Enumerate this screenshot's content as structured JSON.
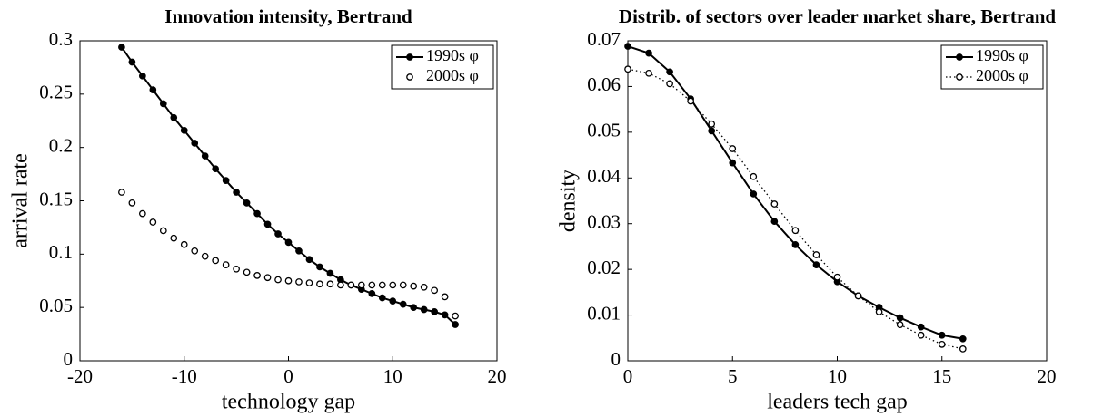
{
  "chart_data": [
    {
      "type": "line",
      "title": "Innovation intensity, Bertrand",
      "xlabel": "technology gap",
      "ylabel": "arrival rate",
      "x": [
        -16,
        -15,
        -14,
        -13,
        -12,
        -11,
        -10,
        -9,
        -8,
        -7,
        -6,
        -5,
        -4,
        -3,
        -2,
        -1,
        0,
        1,
        2,
        3,
        4,
        5,
        6,
        7,
        8,
        9,
        10,
        11,
        12,
        13,
        14,
        15,
        16
      ],
      "series": [
        {
          "name": "1990s φ",
          "color": "#000000",
          "linestyle": "solid",
          "marker_filled": true,
          "values": [
            0.294,
            0.28,
            0.267,
            0.254,
            0.241,
            0.228,
            0.216,
            0.204,
            0.192,
            0.18,
            0.169,
            0.158,
            0.148,
            0.138,
            0.128,
            0.119,
            0.111,
            0.103,
            0.095,
            0.088,
            0.082,
            0.076,
            0.071,
            0.067,
            0.063,
            0.059,
            0.056,
            0.053,
            0.05,
            0.048,
            0.046,
            0.043,
            0.034
          ]
        },
        {
          "name": "2000s φ",
          "color": "#000000",
          "linestyle": "none",
          "marker_filled": false,
          "values": [
            0.158,
            0.148,
            0.138,
            0.13,
            0.122,
            0.115,
            0.109,
            0.103,
            0.098,
            0.094,
            0.09,
            0.086,
            0.083,
            0.08,
            0.078,
            0.076,
            0.075,
            0.074,
            0.073,
            0.072,
            0.072,
            0.071,
            0.071,
            0.071,
            0.071,
            0.071,
            0.071,
            0.071,
            0.07,
            0.069,
            0.066,
            0.06,
            0.042
          ]
        }
      ],
      "xlim": [
        -20,
        20
      ],
      "xticks": [
        -20,
        -10,
        0,
        10,
        20
      ],
      "ylim": [
        0,
        0.3
      ],
      "yticks": [
        0,
        0.05,
        0.1,
        0.15,
        0.2,
        0.25,
        0.3
      ],
      "grid": false,
      "legend": "upper right"
    },
    {
      "type": "line",
      "title": "Distrib. of sectors over leader market share, Bertrand",
      "xlabel": "leaders tech gap",
      "ylabel": "density",
      "x": [
        0,
        1,
        2,
        3,
        4,
        5,
        6,
        7,
        8,
        9,
        10,
        11,
        12,
        13,
        14,
        15,
        16
      ],
      "series": [
        {
          "name": "1990s φ",
          "color": "#000000",
          "linestyle": "solid",
          "marker_filled": true,
          "values": [
            0.0688,
            0.0673,
            0.0632,
            0.0573,
            0.0503,
            0.0433,
            0.0365,
            0.0305,
            0.0254,
            0.021,
            0.0173,
            0.0142,
            0.0117,
            0.0094,
            0.0074,
            0.0056,
            0.0048
          ]
        },
        {
          "name": "2000s φ",
          "color": "#000000",
          "linestyle": "dotted",
          "marker_filled": false,
          "values": [
            0.0638,
            0.0629,
            0.0606,
            0.0568,
            0.0518,
            0.0464,
            0.0403,
            0.0343,
            0.0285,
            0.0232,
            0.0183,
            0.0142,
            0.0107,
            0.0079,
            0.0056,
            0.0036,
            0.0026
          ]
        }
      ],
      "xlim": [
        0,
        20
      ],
      "xticks": [
        0,
        5,
        10,
        15,
        20
      ],
      "ylim": [
        0,
        0.07
      ],
      "yticks": [
        0,
        0.01,
        0.02,
        0.03,
        0.04,
        0.05,
        0.06,
        0.07
      ],
      "grid": false,
      "legend": "upper right"
    }
  ]
}
